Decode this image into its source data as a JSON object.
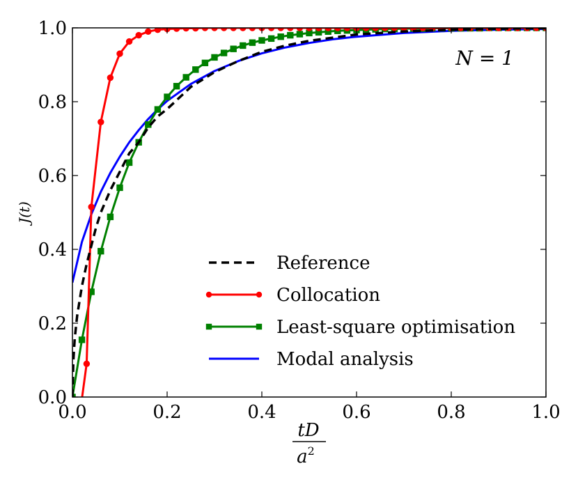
{
  "chart_data": {
    "type": "line",
    "xlabel_numerator": "tD",
    "xlabel_denominator": "a",
    "xlabel_denominator_exponent": "2",
    "ylabel": "J(t)",
    "xlim": [
      0.0,
      1.0
    ],
    "ylim": [
      0.0,
      1.0
    ],
    "x_ticks": [
      "0.0",
      "0.2",
      "0.4",
      "0.6",
      "0.8",
      "1.0"
    ],
    "y_ticks": [
      "0.0",
      "0.2",
      "0.4",
      "0.6",
      "0.8",
      "1.0"
    ],
    "annotation": "N = 1",
    "legend_position": "lower-center",
    "series": [
      {
        "name": "Reference",
        "color": "#000000",
        "style": "dashed",
        "marker": "none",
        "x": [
          0.0,
          0.002,
          0.005,
          0.01,
          0.02,
          0.03,
          0.04,
          0.05,
          0.06,
          0.08,
          0.1,
          0.12,
          0.14,
          0.16,
          0.18,
          0.2,
          0.25,
          0.3,
          0.35,
          0.4,
          0.45,
          0.5,
          0.6,
          0.7,
          0.8,
          0.9,
          1.0
        ],
        "y": [
          0.0,
          0.1,
          0.16,
          0.22,
          0.3,
          0.36,
          0.41,
          0.46,
          0.5,
          0.56,
          0.61,
          0.66,
          0.69,
          0.73,
          0.76,
          0.78,
          0.84,
          0.88,
          0.91,
          0.935,
          0.952,
          0.965,
          0.982,
          0.99,
          0.995,
          0.998,
          0.999
        ]
      },
      {
        "name": "Collocation",
        "color": "#ff0000",
        "style": "solid",
        "marker": "circle",
        "x": [
          0.02,
          0.03,
          0.04,
          0.06,
          0.08,
          0.1,
          0.12,
          0.14,
          0.16,
          0.18,
          0.2,
          0.22,
          0.24,
          0.26,
          0.28,
          0.3,
          0.32,
          0.34,
          0.36,
          0.38,
          0.4,
          0.42,
          0.44,
          0.46,
          0.48,
          0.5,
          0.52,
          0.54,
          0.56,
          0.58,
          0.6,
          0.62,
          0.64,
          0.66,
          0.68,
          0.7,
          0.72,
          0.74,
          0.76,
          0.78,
          0.8,
          0.82,
          0.84,
          0.86,
          0.88,
          0.9,
          0.92,
          0.94,
          0.96,
          0.98,
          1.0
        ],
        "y": [
          -0.005,
          0.09,
          0.515,
          0.745,
          0.865,
          0.93,
          0.963,
          0.98,
          0.99,
          0.995,
          0.997,
          0.998,
          0.999,
          0.999,
          1.0,
          1.0,
          1.0,
          1.0,
          1.0,
          1.0,
          1.0,
          1.0,
          1.0,
          1.0,
          1.0,
          1.0,
          1.0,
          1.0,
          1.0,
          1.0,
          1.0,
          1.0,
          1.0,
          1.0,
          1.0,
          1.0,
          1.0,
          1.0,
          1.0,
          1.0,
          1.0,
          1.0,
          1.0,
          1.0,
          1.0,
          1.0,
          1.0,
          1.0,
          1.0,
          1.0,
          1.0
        ],
        "marker_from_index": 1
      },
      {
        "name": "Least-square optimisation",
        "color": "#008000",
        "style": "solid",
        "marker": "square",
        "x": [
          0.0,
          0.02,
          0.04,
          0.06,
          0.08,
          0.1,
          0.12,
          0.14,
          0.16,
          0.18,
          0.2,
          0.22,
          0.24,
          0.26,
          0.28,
          0.3,
          0.32,
          0.34,
          0.36,
          0.38,
          0.4,
          0.42,
          0.44,
          0.46,
          0.48,
          0.5,
          0.52,
          0.54,
          0.56,
          0.58,
          0.6,
          0.62,
          0.64,
          0.66,
          0.68,
          0.7,
          0.72,
          0.74,
          0.76,
          0.78,
          0.8,
          0.82,
          0.84,
          0.86,
          0.88,
          0.9,
          0.92,
          0.94,
          0.96,
          0.98,
          1.0
        ],
        "y": [
          0.0,
          0.155,
          0.285,
          0.395,
          0.488,
          0.567,
          0.635,
          0.69,
          0.738,
          0.779,
          0.813,
          0.842,
          0.866,
          0.887,
          0.905,
          0.92,
          0.932,
          0.943,
          0.952,
          0.96,
          0.966,
          0.971,
          0.976,
          0.98,
          0.983,
          0.986,
          0.988,
          0.99,
          0.992,
          0.993,
          0.994,
          0.995,
          0.996,
          0.997,
          0.997,
          0.998,
          0.998,
          0.998,
          0.999,
          0.999,
          0.999,
          0.999,
          0.999,
          0.999,
          1.0,
          1.0,
          1.0,
          1.0,
          1.0,
          1.0,
          1.0
        ]
      },
      {
        "name": "Modal analysis",
        "color": "#0000ff",
        "style": "solid",
        "marker": "none",
        "x": [
          0.0,
          0.02,
          0.04,
          0.06,
          0.08,
          0.1,
          0.12,
          0.14,
          0.16,
          0.18,
          0.2,
          0.25,
          0.3,
          0.35,
          0.4,
          0.45,
          0.5,
          0.55,
          0.6,
          0.7,
          0.8,
          0.9,
          1.0
        ],
        "y": [
          0.31,
          0.42,
          0.495,
          0.556,
          0.607,
          0.651,
          0.69,
          0.723,
          0.753,
          0.779,
          0.802,
          0.848,
          0.883,
          0.91,
          0.931,
          0.947,
          0.959,
          0.969,
          0.976,
          0.986,
          0.992,
          0.995,
          0.997
        ]
      }
    ]
  }
}
